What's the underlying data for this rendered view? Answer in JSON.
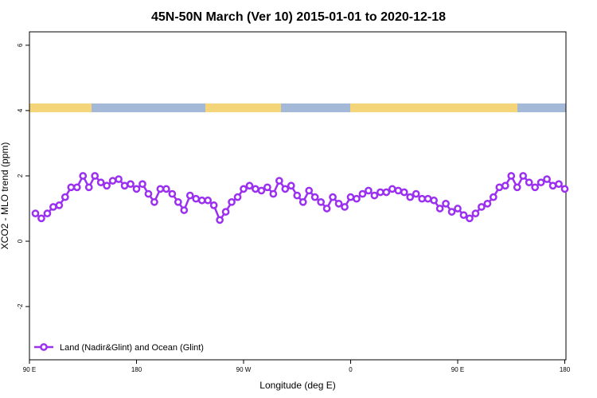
{
  "chart_data": {
    "type": "line",
    "title": "45N-50N March (Ver 10)   2015-01-01 to 2020-12-18",
    "x_label": "Longitude (deg E)",
    "y_label": "XCO2 - MLO trend (ppm)",
    "xlim": [
      90,
      541
    ],
    "ylim": [
      -3.63,
      6.41
    ],
    "xticks": [
      {
        "value": 90,
        "label": "90 E"
      },
      180,
      {
        "value": 270,
        "label": "90 W"
      },
      {
        "value": 360,
        "label": "0"
      },
      {
        "value": 450,
        "label": "90 E"
      },
      {
        "value": 540,
        "label": "180"
      }
    ],
    "yticks": [
      -2,
      0,
      2,
      4,
      6
    ],
    "legend": "bottom-left",
    "x": [
      95,
      100,
      105,
      110,
      115,
      120,
      125,
      130,
      135,
      140,
      145,
      150,
      155,
      160,
      165,
      170,
      175,
      180,
      185,
      190,
      195,
      200,
      205,
      210,
      215,
      220,
      225,
      230,
      235,
      240,
      245,
      250,
      255,
      260,
      265,
      270,
      275,
      280,
      285,
      290,
      295,
      300,
      305,
      310,
      315,
      320,
      325,
      330,
      335,
      340,
      345,
      350,
      355,
      360,
      365,
      370,
      375,
      380,
      385,
      390,
      395,
      400,
      405,
      410,
      415,
      420,
      425,
      430,
      435,
      440,
      445,
      450,
      455,
      460,
      465,
      470,
      475,
      480,
      485,
      490,
      495,
      500,
      505,
      510,
      515,
      520,
      525,
      530,
      535,
      540
    ],
    "series": [
      {
        "name": "Land (Nadir&Glint) and Ocean (Glint)",
        "color": "#9b30f0",
        "values": [
          0.85,
          0.7,
          0.85,
          1.05,
          1.1,
          1.35,
          1.65,
          1.65,
          2.0,
          1.65,
          2.0,
          1.8,
          1.7,
          1.85,
          1.9,
          1.7,
          1.75,
          1.6,
          1.75,
          1.45,
          1.2,
          1.6,
          1.6,
          1.45,
          1.2,
          0.95,
          1.4,
          1.3,
          1.25,
          1.25,
          1.1,
          0.65,
          0.9,
          1.2,
          1.35,
          1.6,
          1.7,
          1.6,
          1.55,
          1.65,
          1.45,
          1.85,
          1.6,
          1.7,
          1.4,
          1.2,
          1.55,
          1.35,
          1.2,
          1.0,
          1.35,
          1.15,
          1.05,
          1.35,
          1.3,
          1.45,
          1.55,
          1.4,
          1.5,
          1.5,
          1.6,
          1.55,
          1.5,
          1.35,
          1.45,
          1.3,
          1.3,
          1.25,
          1.0,
          1.15,
          0.9,
          1.0,
          0.8,
          0.7,
          0.85,
          1.05,
          1.15,
          1.35,
          1.65,
          1.7,
          2.0,
          1.65,
          2.0,
          1.8,
          1.65,
          1.8,
          1.9,
          1.7,
          1.75,
          1.6
        ]
      }
    ]
  }
}
